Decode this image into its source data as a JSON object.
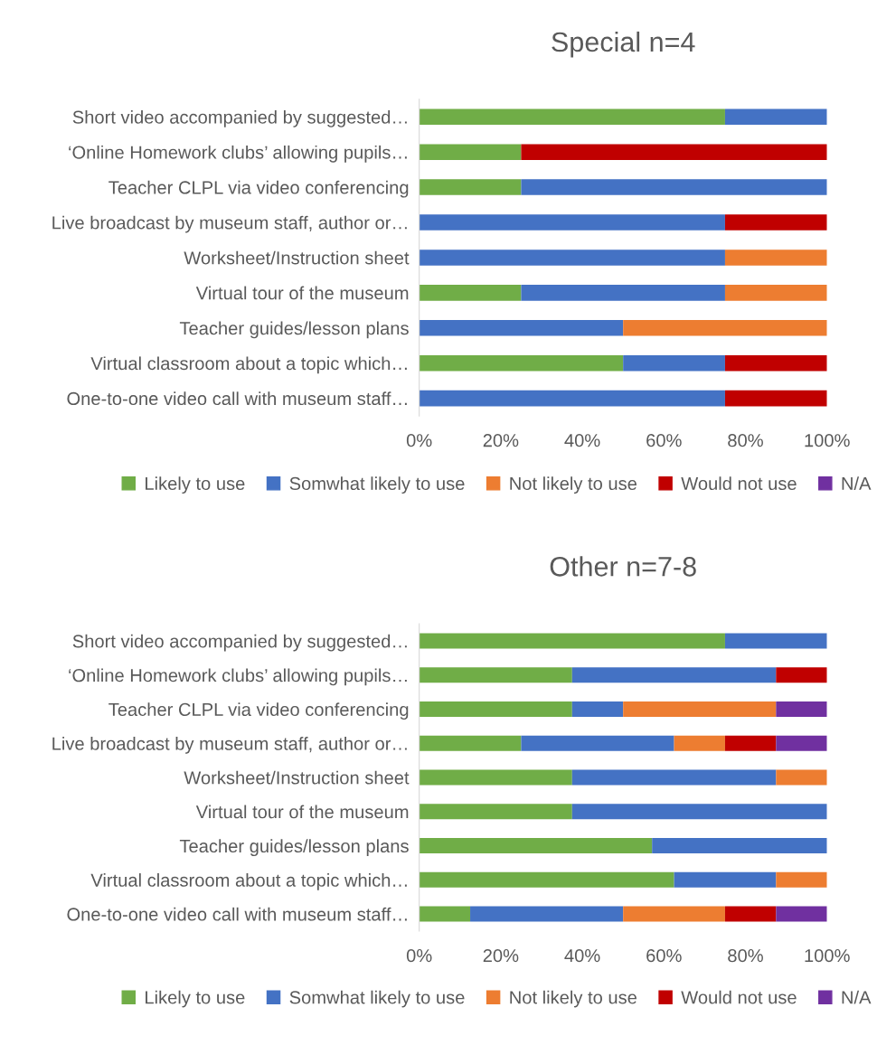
{
  "chart_data": [
    {
      "type": "bar",
      "orientation": "horizontal",
      "stacked": true,
      "title": "Special n=4",
      "categories": [
        "Short video accompanied by suggested…",
        "‘Online Homework clubs’ allowing pupils…",
        "Teacher CLPL via video conferencing",
        "Live broadcast by museum staff, author or…",
        "Worksheet/Instruction sheet",
        "Virtual tour of the museum",
        "Teacher guides/lesson plans",
        "Virtual classroom about a topic which…",
        "One-to-one video call with museum staff…"
      ],
      "series": [
        {
          "name": "Likely to use",
          "color": "#70ad47",
          "values": [
            75,
            25,
            25,
            0,
            0,
            25,
            0,
            50,
            0
          ]
        },
        {
          "name": "Somwhat likely to use",
          "color": "#4472c4",
          "values": [
            25,
            0,
            75,
            75,
            75,
            50,
            50,
            25,
            75
          ]
        },
        {
          "name": "Not likely to use",
          "color": "#ed7d31",
          "values": [
            0,
            0,
            0,
            0,
            25,
            25,
            50,
            0,
            0
          ]
        },
        {
          "name": "Would not use",
          "color": "#c00000",
          "values": [
            0,
            75,
            0,
            25,
            0,
            0,
            0,
            25,
            25
          ]
        },
        {
          "name": "N/A",
          "color": "#7030a0",
          "values": [
            0,
            0,
            0,
            0,
            0,
            0,
            0,
            0,
            0
          ]
        }
      ],
      "xlim": [
        0,
        100
      ],
      "xticks": [
        {
          "value": 0,
          "label": "0%"
        },
        {
          "value": 20,
          "label": "20%"
        },
        {
          "value": 40,
          "label": "40%"
        },
        {
          "value": 60,
          "label": "60%"
        },
        {
          "value": 80,
          "label": "80%"
        },
        {
          "value": 100,
          "label": "100%"
        }
      ],
      "grid": false,
      "legend": "bottom"
    },
    {
      "type": "bar",
      "orientation": "horizontal",
      "stacked": true,
      "title": "Other n=7-8",
      "categories": [
        "Short video accompanied by suggested…",
        "‘Online Homework clubs’ allowing pupils…",
        "Teacher CLPL via video conferencing",
        "Live broadcast by museum staff, author or…",
        "Worksheet/Instruction sheet",
        "Virtual tour of the museum",
        "Teacher guides/lesson plans",
        "Virtual classroom about a topic which…",
        "One-to-one video call with museum staff…"
      ],
      "series": [
        {
          "name": "Likely to use",
          "color": "#70ad47",
          "values": [
            75,
            37.5,
            37.5,
            25,
            37.5,
            37.5,
            57.1,
            62.5,
            12.5
          ]
        },
        {
          "name": "Somwhat likely to use",
          "color": "#4472c4",
          "values": [
            25,
            50,
            12.5,
            37.5,
            50,
            62.5,
            42.9,
            25,
            37.5
          ]
        },
        {
          "name": "Not likely to use",
          "color": "#ed7d31",
          "values": [
            0,
            0,
            37.5,
            12.5,
            12.5,
            0,
            0,
            12.5,
            25
          ]
        },
        {
          "name": "Would not use",
          "color": "#c00000",
          "values": [
            0,
            12.5,
            0,
            12.5,
            0,
            0,
            0,
            0,
            12.5
          ]
        },
        {
          "name": "N/A",
          "color": "#7030a0",
          "values": [
            0,
            0,
            12.5,
            12.5,
            0,
            0,
            0,
            0,
            12.5
          ]
        }
      ],
      "xlim": [
        0,
        100
      ],
      "xticks": [
        {
          "value": 0,
          "label": "0%"
        },
        {
          "value": 20,
          "label": "20%"
        },
        {
          "value": 40,
          "label": "40%"
        },
        {
          "value": 60,
          "label": "60%"
        },
        {
          "value": 80,
          "label": "80%"
        },
        {
          "value": 100,
          "label": "100%"
        }
      ],
      "grid": false,
      "legend": "bottom"
    }
  ]
}
